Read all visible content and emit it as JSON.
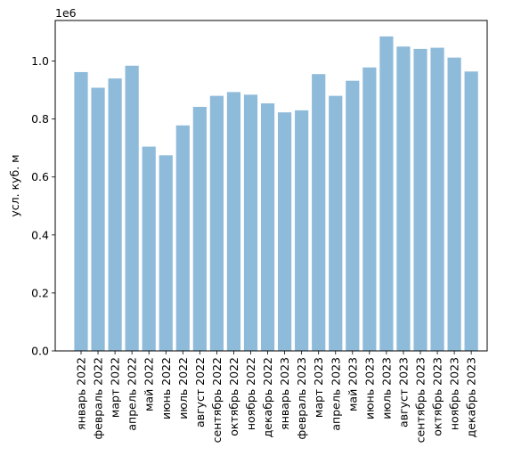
{
  "chart_data": {
    "type": "bar",
    "title": "",
    "xlabel": "",
    "ylabel": "усл. куб. м",
    "y_offset_label": "1e6",
    "ylim": [
      0,
      1.14
    ],
    "yticks": [
      "0.0",
      "0.2",
      "0.4",
      "0.6",
      "0.8",
      "1.0"
    ],
    "bar_color": "#8fbbda",
    "grid": false,
    "categories": [
      "январь 2022",
      "февраль 2022",
      "март 2022",
      "апрель 2022",
      "май 2022",
      "июнь 2022",
      "июль 2022",
      "август 2022",
      "сентябрь 2022",
      "октябрь 2022",
      "ноябрь 2022",
      "декабрь 2022",
      "январь 2023",
      "февраль 2023",
      "март 2023",
      "апрель 2023",
      "май 2023",
      "июнь 2023",
      "июль 2023",
      "август 2023",
      "сентябрь 2023",
      "октябрь 2023",
      "ноябрь 2023",
      "декабрь 2023"
    ],
    "values": [
      0.962,
      0.908,
      0.94,
      0.984,
      0.705,
      0.675,
      0.778,
      0.842,
      0.88,
      0.893,
      0.884,
      0.854,
      0.823,
      0.83,
      0.955,
      0.88,
      0.932,
      0.978,
      1.085,
      1.05,
      1.042,
      1.046,
      1.012,
      0.964
    ]
  }
}
